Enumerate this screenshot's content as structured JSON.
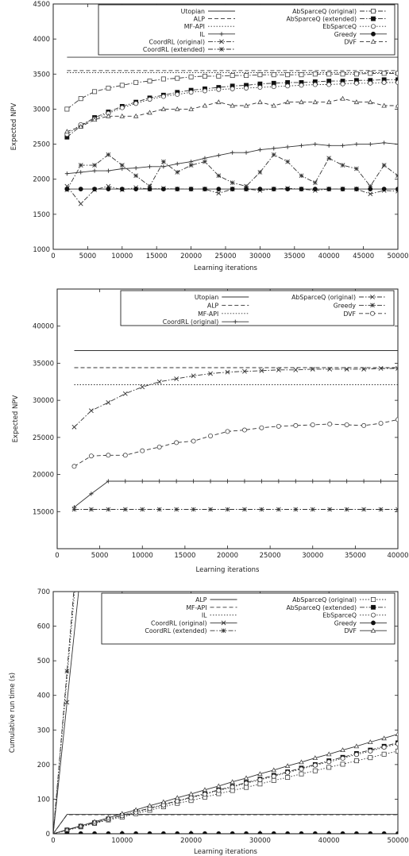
{
  "chart_data": [
    {
      "type": "line",
      "title": "",
      "xlabel": "Learning iterations",
      "ylabel": "Expected NPV",
      "xlim": [
        0,
        50000
      ],
      "ylim": [
        1000,
        4500
      ],
      "xticks": [
        0,
        5000,
        10000,
        15000,
        20000,
        25000,
        30000,
        35000,
        40000,
        45000,
        50000
      ],
      "yticks": [
        1000,
        1500,
        2000,
        2500,
        3000,
        3500,
        4000,
        4500
      ],
      "grid": false,
      "legend_position": "top-right",
      "x": [
        2000,
        4000,
        6000,
        8000,
        10000,
        12000,
        14000,
        16000,
        18000,
        20000,
        22000,
        24000,
        26000,
        28000,
        30000,
        32000,
        34000,
        36000,
        38000,
        40000,
        42000,
        44000,
        46000,
        48000,
        50000
      ],
      "series": [
        {
          "name": "Utopian",
          "style": "solid",
          "marker": "none",
          "values": [
            3740,
            3740,
            3740,
            3740,
            3740,
            3740,
            3740,
            3740,
            3740,
            3740,
            3740,
            3740,
            3740,
            3740,
            3740,
            3740,
            3740,
            3740,
            3740,
            3740,
            3740,
            3740,
            3740,
            3740,
            3740
          ]
        },
        {
          "name": "ALP",
          "style": "dashed",
          "marker": "none",
          "values": [
            3550,
            3550,
            3550,
            3550,
            3550,
            3550,
            3550,
            3550,
            3550,
            3550,
            3550,
            3550,
            3550,
            3550,
            3550,
            3550,
            3550,
            3550,
            3550,
            3550,
            3550,
            3550,
            3550,
            3550,
            3550
          ]
        },
        {
          "name": "MF-API",
          "style": "dotted",
          "marker": "none",
          "values": [
            3520,
            3520,
            3520,
            3520,
            3520,
            3520,
            3520,
            3520,
            3520,
            3520,
            3520,
            3520,
            3520,
            3520,
            3520,
            3520,
            3520,
            3520,
            3520,
            3520,
            3520,
            3520,
            3520,
            3520,
            3520
          ]
        },
        {
          "name": "IL",
          "style": "solid",
          "marker": "plus",
          "values": [
            2080,
            2100,
            2120,
            2120,
            2150,
            2160,
            2180,
            2180,
            2220,
            2250,
            2300,
            2340,
            2380,
            2380,
            2420,
            2440,
            2460,
            2480,
            2500,
            2480,
            2480,
            2500,
            2500,
            2520,
            2500
          ]
        },
        {
          "name": "CoordRL (original)",
          "style": "dashdot",
          "marker": "x",
          "values": [
            1900,
            1650,
            1850,
            1900,
            1850,
            1880,
            1860,
            1870,
            1860,
            1860,
            1860,
            1800,
            1860,
            1860,
            1840,
            1860,
            1870,
            1860,
            1840,
            1860,
            1860,
            1860,
            1790,
            1840,
            1830
          ]
        },
        {
          "name": "CoordRL (extended)",
          "style": "dashdot",
          "marker": "star",
          "values": [
            1850,
            2200,
            2200,
            2350,
            2200,
            2050,
            1900,
            2250,
            2100,
            2200,
            2250,
            2050,
            1950,
            1900,
            2100,
            2350,
            2250,
            2050,
            1950,
            2300,
            2200,
            2150,
            1900,
            2200,
            2050
          ]
        },
        {
          "name": "AbSparceQ (original)",
          "style": "dashdot",
          "marker": "square-open",
          "values": [
            3000,
            3150,
            3250,
            3300,
            3340,
            3380,
            3400,
            3430,
            3440,
            3460,
            3470,
            3470,
            3480,
            3480,
            3490,
            3490,
            3490,
            3490,
            3500,
            3500,
            3500,
            3500,
            3510,
            3510,
            3510
          ]
        },
        {
          "name": "AbSparceQ (extended)",
          "style": "dashdot",
          "marker": "square-filled",
          "values": [
            2600,
            2760,
            2880,
            2960,
            3040,
            3100,
            3160,
            3200,
            3240,
            3270,
            3290,
            3310,
            3330,
            3340,
            3360,
            3370,
            3380,
            3380,
            3390,
            3400,
            3400,
            3410,
            3410,
            3420,
            3420
          ]
        },
        {
          "name": "EbSparceQ",
          "style": "dotted",
          "marker": "circle-open",
          "values": [
            2640,
            2780,
            2860,
            2940,
            3020,
            3080,
            3140,
            3180,
            3210,
            3240,
            3260,
            3280,
            3290,
            3300,
            3310,
            3320,
            3330,
            3340,
            3350,
            3350,
            3360,
            3370,
            3370,
            3380,
            3380
          ]
        },
        {
          "name": "Greedy",
          "style": "solid",
          "marker": "circle-filled",
          "values": [
            1860,
            1860,
            1860,
            1860,
            1860,
            1860,
            1860,
            1860,
            1860,
            1860,
            1860,
            1860,
            1860,
            1860,
            1860,
            1860,
            1860,
            1860,
            1860,
            1860,
            1860,
            1860,
            1860,
            1860,
            1860
          ]
        },
        {
          "name": "DVF",
          "style": "dashed",
          "marker": "triangle",
          "values": [
            2680,
            2750,
            2850,
            2900,
            2900,
            2900,
            2950,
            3000,
            3000,
            3000,
            3050,
            3100,
            3050,
            3050,
            3100,
            3050,
            3100,
            3100,
            3100,
            3100,
            3150,
            3100,
            3100,
            3050,
            3050
          ]
        }
      ]
    },
    {
      "type": "line",
      "title": "",
      "xlabel": "Learning iterations",
      "ylabel": "Expected NPV",
      "xlim": [
        0,
        40000
      ],
      "ylim": [
        10000,
        45000
      ],
      "xticks": [
        0,
        5000,
        10000,
        15000,
        20000,
        25000,
        30000,
        35000,
        40000
      ],
      "yticks": [
        15000,
        20000,
        25000,
        30000,
        35000,
        40000
      ],
      "grid": false,
      "legend_position": "top-right",
      "x": [
        2000,
        4000,
        6000,
        8000,
        10000,
        12000,
        14000,
        16000,
        18000,
        20000,
        22000,
        24000,
        26000,
        28000,
        30000,
        32000,
        34000,
        36000,
        38000,
        40000
      ],
      "series": [
        {
          "name": "Utopian",
          "style": "solid",
          "marker": "none",
          "values": [
            36700,
            36700,
            36700,
            36700,
            36700,
            36700,
            36700,
            36700,
            36700,
            36700,
            36700,
            36700,
            36700,
            36700,
            36700,
            36700,
            36700,
            36700,
            36700,
            36700
          ]
        },
        {
          "name": "ALP",
          "style": "dashed",
          "marker": "none",
          "values": [
            34400,
            34400,
            34400,
            34400,
            34400,
            34400,
            34400,
            34400,
            34400,
            34400,
            34400,
            34400,
            34400,
            34400,
            34400,
            34400,
            34400,
            34400,
            34400,
            34400
          ]
        },
        {
          "name": "MF-API",
          "style": "dotted",
          "marker": "none",
          "values": [
            32100,
            32100,
            32100,
            32100,
            32100,
            32100,
            32100,
            32100,
            32100,
            32100,
            32100,
            32100,
            32100,
            32100,
            32100,
            32100,
            32100,
            32100,
            32100,
            32100
          ]
        },
        {
          "name": "CoordRL (original)",
          "style": "solid",
          "marker": "plus",
          "values": [
            15600,
            17400,
            19100,
            19100,
            19100,
            19100,
            19100,
            19100,
            19100,
            19100,
            19100,
            19100,
            19100,
            19100,
            19100,
            19100,
            19100,
            19100,
            19100,
            19100
          ]
        },
        {
          "name": "AbSparceQ (original)",
          "style": "dashdot",
          "marker": "x",
          "values": [
            26400,
            28600,
            29700,
            30900,
            31800,
            32500,
            32900,
            33300,
            33600,
            33800,
            33900,
            34000,
            34100,
            34100,
            34200,
            34200,
            34200,
            34200,
            34300,
            34300
          ]
        },
        {
          "name": "Greedy",
          "style": "dashdot",
          "marker": "star",
          "values": [
            15300,
            15300,
            15300,
            15300,
            15300,
            15300,
            15300,
            15300,
            15300,
            15300,
            15300,
            15300,
            15300,
            15300,
            15300,
            15300,
            15300,
            15300,
            15300,
            15300
          ]
        },
        {
          "name": "DVF",
          "style": "dashed",
          "marker": "circle-open",
          "values": [
            21100,
            22500,
            22600,
            22600,
            23200,
            23700,
            24300,
            24500,
            25200,
            25800,
            26000,
            26300,
            26500,
            26600,
            26700,
            26800,
            26700,
            26600,
            26900,
            27400
          ]
        }
      ]
    },
    {
      "type": "line",
      "title": "",
      "xlabel": "Learning iterations",
      "ylabel": "Cumulative run time (s)",
      "xlim": [
        0,
        50000
      ],
      "ylim": [
        0,
        700
      ],
      "xticks": [
        0,
        10000,
        20000,
        30000,
        40000,
        50000
      ],
      "yticks": [
        0,
        100,
        200,
        300,
        400,
        500,
        600,
        700
      ],
      "grid": false,
      "legend_position": "top-right",
      "x": [
        0,
        2000,
        4000,
        6000,
        8000,
        10000,
        12000,
        14000,
        16000,
        18000,
        20000,
        22000,
        24000,
        26000,
        28000,
        30000,
        32000,
        34000,
        36000,
        38000,
        40000,
        42000,
        44000,
        46000,
        48000,
        50000
      ],
      "series": [
        {
          "name": "ALP",
          "style": "solid",
          "marker": "none",
          "values": [
            0,
            56,
            56,
            56,
            56,
            56,
            56,
            56,
            56,
            56,
            56,
            56,
            56,
            56,
            56,
            56,
            56,
            56,
            56,
            56,
            56,
            56,
            56,
            56,
            56,
            56
          ]
        },
        {
          "name": "MF-API",
          "style": "dashed",
          "marker": "none",
          "values": [
            0,
            55,
            55,
            55,
            55,
            55,
            55,
            55,
            55,
            55,
            55,
            55,
            55,
            55,
            55,
            55,
            55,
            55,
            55,
            55,
            55,
            55,
            55,
            55,
            55,
            55
          ]
        },
        {
          "name": "IL",
          "style": "dotted",
          "marker": "none",
          "values": [
            0,
            450,
            900,
            null,
            null,
            null,
            null,
            null,
            null,
            null,
            null,
            null,
            null,
            null,
            null,
            null,
            null,
            null,
            null,
            null,
            null,
            null,
            null,
            null,
            null,
            null
          ]
        },
        {
          "name": "CoordRL (original)",
          "style": "solid",
          "marker": "x",
          "values": [
            0,
            380,
            760,
            null,
            null,
            null,
            null,
            null,
            null,
            null,
            null,
            null,
            null,
            null,
            null,
            null,
            null,
            null,
            null,
            null,
            null,
            null,
            null,
            null,
            null,
            null
          ]
        },
        {
          "name": "CoordRL (extended)",
          "style": "dashdot",
          "marker": "star",
          "values": [
            0,
            470,
            940,
            null,
            null,
            null,
            null,
            null,
            null,
            null,
            null,
            null,
            null,
            null,
            null,
            null,
            null,
            null,
            null,
            null,
            null,
            null,
            null,
            null,
            null,
            null
          ]
        },
        {
          "name": "AbSparceQ (original)",
          "style": "dotted",
          "marker": "square-open",
          "values": [
            0,
            10,
            20,
            30,
            40,
            48,
            58,
            68,
            78,
            88,
            96,
            106,
            116,
            125,
            134,
            144,
            154,
            163,
            173,
            182,
            192,
            201,
            211,
            220,
            230,
            239
          ]
        },
        {
          "name": "AbSparceQ (extended)",
          "style": "dashdot",
          "marker": "square-filled",
          "values": [
            0,
            11,
            22,
            32,
            43,
            53,
            64,
            74,
            85,
            95,
            106,
            116,
            127,
            137,
            148,
            158,
            169,
            179,
            190,
            200,
            211,
            221,
            232,
            242,
            253,
            263
          ]
        },
        {
          "name": "EbSparceQ",
          "style": "dotted",
          "marker": "circle-open",
          "values": [
            0,
            10,
            21,
            31,
            42,
            52,
            62,
            73,
            83,
            94,
            104,
            114,
            125,
            135,
            146,
            156,
            166,
            177,
            187,
            198,
            208,
            218,
            229,
            239,
            250,
            260
          ]
        },
        {
          "name": "Greedy",
          "style": "solid",
          "marker": "circle-filled",
          "values": [
            0,
            0.5,
            0.5,
            0.5,
            0.5,
            0.5,
            0.5,
            0.5,
            0.5,
            0.5,
            0.5,
            0.5,
            0.5,
            0.5,
            0.5,
            0.5,
            0.5,
            0.5,
            0.5,
            0.5,
            0.5,
            0.5,
            0.5,
            0.5,
            0.5,
            0.5
          ]
        },
        {
          "name": "DVF",
          "style": "solid",
          "marker": "triangle",
          "values": [
            0,
            12,
            23,
            35,
            46,
            58,
            69,
            81,
            92,
            104,
            115,
            127,
            138,
            150,
            161,
            173,
            184,
            196,
            207,
            219,
            230,
            242,
            253,
            265,
            276,
            288
          ]
        }
      ]
    }
  ]
}
